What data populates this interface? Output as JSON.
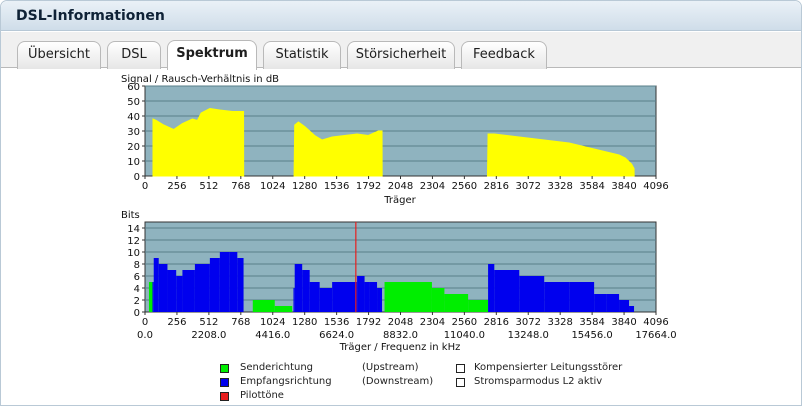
{
  "window": {
    "title": "DSL-Informationen"
  },
  "tabs": [
    {
      "label": "Übersicht",
      "active": false
    },
    {
      "label": "DSL",
      "active": false
    },
    {
      "label": "Spektrum",
      "active": true
    },
    {
      "label": "Statistik",
      "active": false
    },
    {
      "label": "Störsicherheit",
      "active": false
    },
    {
      "label": "Feedback",
      "active": false
    }
  ],
  "colors": {
    "plot_bg": "#8fb3bf",
    "grid": "#587f8a",
    "snr": "#ffff00",
    "upstream": "#00ee00",
    "downstream": "#0000ee",
    "pilot": "#e81e1e"
  },
  "chart_data": [
    {
      "type": "area",
      "ylabel": "Signal / Rausch-Verhältnis in dB",
      "xlabel": "Träger",
      "ylim": [
        0,
        60
      ],
      "yticks": [
        "0",
        "10",
        "20",
        "30",
        "40",
        "50",
        "60"
      ],
      "xlim": [
        0,
        4096
      ],
      "xticks": [
        "0",
        "256",
        "512",
        "768",
        "1024",
        "1280",
        "1536",
        "1792",
        "2048",
        "2304",
        "2560",
        "2816",
        "3072",
        "3328",
        "3584",
        "3840",
        "4096"
      ],
      "grid": true,
      "series": [
        {
          "x": [
            64,
            90,
            150,
            230,
            300,
            380,
            420,
            450,
            520,
            600,
            700,
            790,
            791
          ],
          "y": [
            38,
            37,
            34,
            31,
            35,
            38,
            37,
            42,
            45,
            44,
            43,
            43,
            0
          ]
        },
        {
          "x": [
            1195,
            1200,
            1230,
            1280,
            1360,
            1420,
            1500,
            1600,
            1700,
            1790,
            1870,
            1900,
            1901
          ],
          "y": [
            0,
            34,
            36,
            33,
            27,
            24,
            26,
            27,
            28,
            27,
            30,
            30,
            0
          ]
        },
        {
          "x": [
            2745,
            2750,
            2800,
            2900,
            3000,
            3100,
            3200,
            3300,
            3400,
            3500,
            3600,
            3700,
            3800,
            3850,
            3900,
            3920,
            3921
          ],
          "y": [
            0,
            28,
            28,
            27,
            26,
            25,
            24,
            23,
            22,
            20,
            18,
            16,
            14,
            12,
            8,
            5,
            0
          ]
        }
      ]
    },
    {
      "type": "bar",
      "ylabel": "Bits",
      "xlabel": "Träger / Frequenz in kHz",
      "ylim": [
        0,
        15
      ],
      "yticks": [
        "0",
        "2",
        "4",
        "6",
        "8",
        "10",
        "12",
        "14"
      ],
      "xlim": [
        0,
        4096
      ],
      "xticks": [
        "0",
        "256",
        "512",
        "768",
        "1024",
        "1280",
        "1536",
        "1792",
        "2048",
        "2304",
        "2560",
        "2816",
        "3072",
        "3328",
        "3584",
        "3840",
        "4096"
      ],
      "xticks_khz": [
        "0.0",
        "2208.0",
        "4416.0",
        "6624.0",
        "8832.0",
        "11040.0",
        "13248.0",
        "15456.0",
        "17664.0"
      ],
      "grid": true,
      "series": [
        {
          "name": "Senderichtung",
          "x": [
            32,
            64
          ],
          "width": [
            32,
            800
          ],
          "values": [
            5,
            0
          ]
        },
        {
          "name": "Senderichtung",
          "x": [
            864,
            1040,
            1920,
            2300,
            2400,
            2590
          ],
          "width": [
            176,
            140,
            380,
            100,
            190,
            160
          ],
          "values": [
            2,
            1,
            5,
            4,
            3,
            2
          ]
        },
        {
          "name": "Empfangsrichtung",
          "x": [
            60,
            70,
            110,
            180,
            250,
            300,
            400,
            520,
            600,
            680,
            740,
            790
          ],
          "width": [
            10,
            40,
            70,
            70,
            50,
            100,
            120,
            80,
            80,
            60,
            50,
            1
          ],
          "values": [
            5,
            9,
            8,
            7,
            6,
            7,
            8,
            9,
            10,
            10,
            9,
            0
          ]
        },
        {
          "name": "Empfangsrichtung",
          "x": [
            1190,
            1200,
            1260,
            1320,
            1400,
            1500,
            1700,
            1760,
            1800,
            1860,
            1900
          ],
          "width": [
            10,
            60,
            60,
            80,
            100,
            200,
            60,
            40,
            60,
            40,
            1
          ],
          "values": [
            4,
            8,
            7,
            5,
            4,
            5,
            6,
            5,
            5,
            4,
            0
          ]
        },
        {
          "name": "Empfangsrichtung",
          "x": [
            2750,
            2800,
            3000,
            3200,
            3400,
            3600,
            3700,
            3800,
            3880,
            3920
          ],
          "width": [
            50,
            200,
            200,
            200,
            200,
            100,
            100,
            80,
            40,
            1
          ],
          "values": [
            8,
            7,
            6,
            5,
            5,
            3,
            3,
            2,
            1,
            0
          ]
        }
      ],
      "pilot_tone": {
        "name": "Pilottöne",
        "x": 1690
      }
    }
  ],
  "legend": {
    "items": [
      {
        "label": "Senderichtung",
        "direction": "(Upstream)",
        "color": "#00ee00"
      },
      {
        "label": "Empfangsrichtung",
        "direction": "(Downstream)",
        "color": "#0000ee"
      },
      {
        "label": "Pilottöne",
        "direction": "",
        "color": "#e81e1e"
      }
    ],
    "extras": [
      {
        "label": "Kompensierter Leitungsstörer",
        "color": "#ffffff"
      },
      {
        "label": "Stromsparmodus L2 aktiv",
        "color": "#ffffff"
      }
    ]
  }
}
